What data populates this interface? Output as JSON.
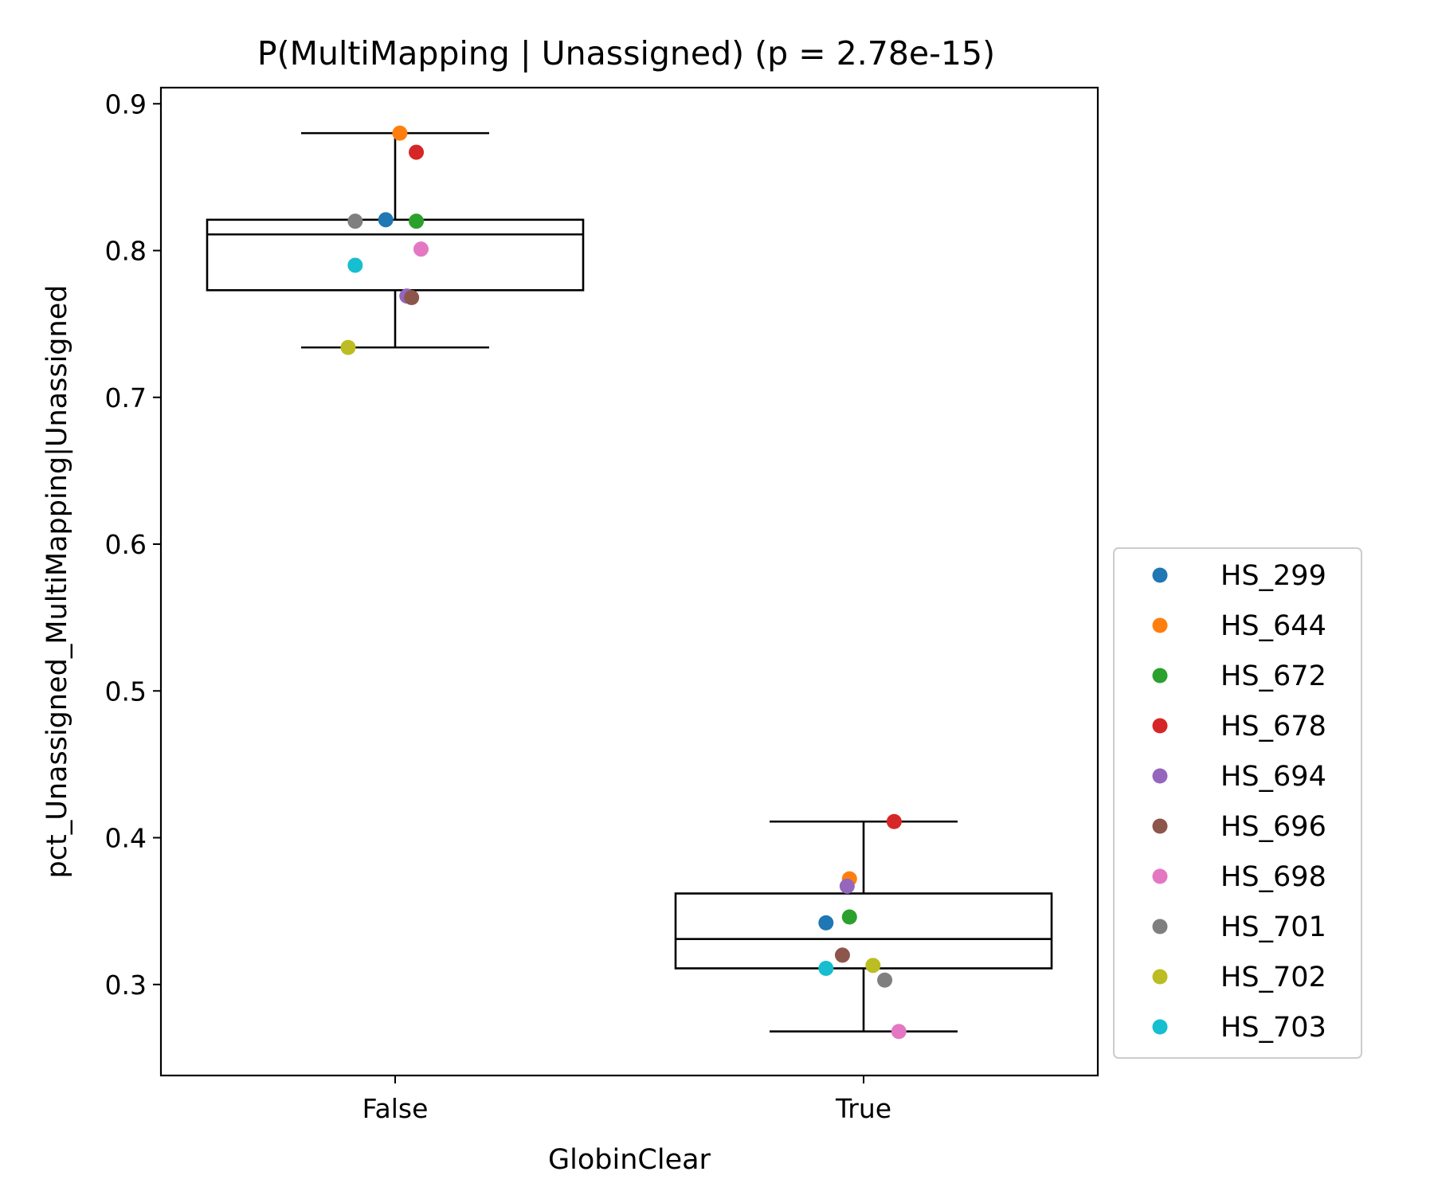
{
  "chart_data": {
    "type": "box",
    "title": "P(MultiMapping | Unassigned) (p = 2.78e-15)",
    "xlabel": "GlobinClear",
    "ylabel": "pct_Unassigned_MultiMapping|Unassigned",
    "ylim": [
      0.238,
      0.911
    ],
    "yticks": [
      0.9,
      0.8,
      0.7,
      0.6,
      0.5,
      0.4,
      0.3
    ],
    "ytick_labels": [
      "0.9",
      "0.8",
      "0.7",
      "0.6",
      "0.5",
      "0.4",
      "0.3"
    ],
    "categories": [
      "False",
      "True"
    ],
    "grid": false,
    "legend_placement": "right-bottom",
    "boxes": [
      {
        "category": "False",
        "whisker_low": 0.734,
        "q1": 0.773,
        "median": 0.811,
        "q3": 0.821,
        "whisker_high": 0.88
      },
      {
        "category": "True",
        "whisker_low": 0.268,
        "q1": 0.311,
        "median": 0.331,
        "q3": 0.362,
        "whisker_high": 0.411
      }
    ],
    "series": [
      {
        "name": "HS_299",
        "color": "#1f77b4",
        "values": [
          0.821,
          0.342
        ],
        "jitter": [
          -0.02,
          -0.08
        ]
      },
      {
        "name": "HS_644",
        "color": "#ff7f0e",
        "values": [
          0.88,
          0.372
        ],
        "jitter": [
          0.01,
          -0.03
        ]
      },
      {
        "name": "HS_672",
        "color": "#2ca02c",
        "values": [
          0.82,
          0.346
        ],
        "jitter": [
          0.045,
          -0.03
        ]
      },
      {
        "name": "HS_678",
        "color": "#d62728",
        "values": [
          0.867,
          0.411
        ],
        "jitter": [
          0.045,
          0.065
        ]
      },
      {
        "name": "HS_694",
        "color": "#9467bd",
        "values": [
          0.769,
          0.367
        ],
        "jitter": [
          0.025,
          -0.035
        ]
      },
      {
        "name": "HS_696",
        "color": "#8c564b",
        "values": [
          0.768,
          0.32
        ],
        "jitter": [
          0.035,
          -0.045
        ]
      },
      {
        "name": "HS_698",
        "color": "#e377c2",
        "values": [
          0.801,
          0.268
        ],
        "jitter": [
          0.055,
          0.075
        ]
      },
      {
        "name": "HS_701",
        "color": "#7f7f7f",
        "values": [
          0.82,
          0.303
        ],
        "jitter": [
          -0.085,
          0.045
        ]
      },
      {
        "name": "HS_702",
        "color": "#bcbd22",
        "values": [
          0.734,
          0.313
        ],
        "jitter": [
          -0.1,
          0.02
        ]
      },
      {
        "name": "HS_703",
        "color": "#17becf",
        "values": [
          0.79,
          0.311
        ],
        "jitter": [
          -0.085,
          -0.08
        ]
      }
    ]
  }
}
